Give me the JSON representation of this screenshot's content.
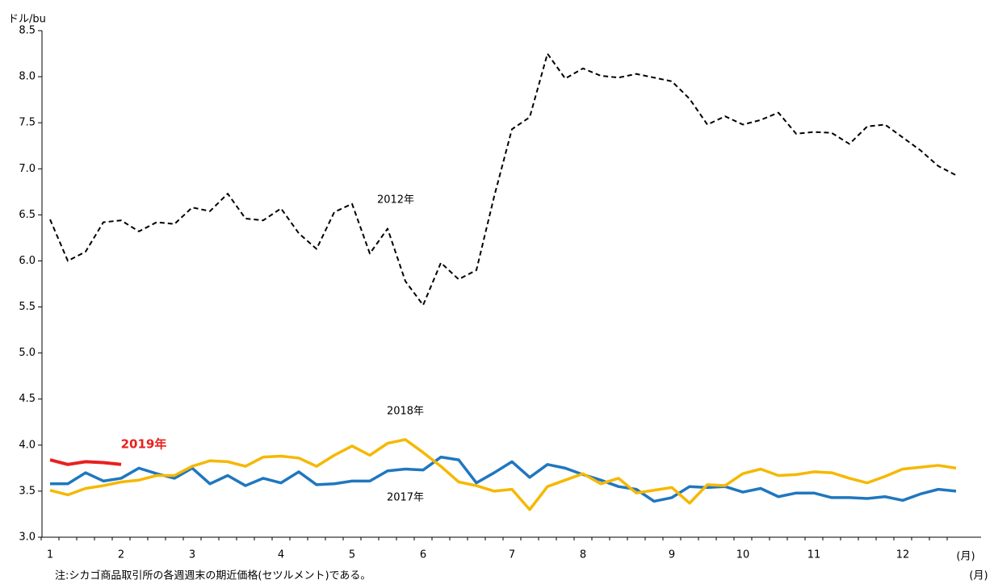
{
  "chart_data": {
    "type": "line",
    "y_label": "ドル/bu",
    "x_label": "(月)",
    "note": "注:シカゴ商品取引所の各週週末の期近価格(セツルメント)である。",
    "annotations": [
      "(月)"
    ],
    "categories": [
      "1",
      null,
      null,
      null,
      "2",
      null,
      null,
      null,
      "3",
      null,
      null,
      null,
      null,
      "4",
      null,
      null,
      null,
      "5",
      null,
      null,
      null,
      "6",
      null,
      null,
      null,
      null,
      "7",
      null,
      null,
      null,
      "8",
      null,
      null,
      null,
      null,
      "9",
      null,
      null,
      null,
      "10",
      null,
      null,
      null,
      "11",
      null,
      null,
      null,
      null,
      "12",
      null,
      null,
      null
    ],
    "ylim": [
      3,
      8.5
    ],
    "yticks": [
      {
        "value": 3,
        "label": "3.0"
      },
      3.5,
      {
        "value": 4,
        "label": "4.0"
      },
      4.5,
      {
        "value": 5,
        "label": "5.0"
      },
      5.5,
      {
        "value": 6,
        "label": "6.0"
      },
      6.5,
      {
        "value": 7,
        "label": "7.0"
      },
      7.5,
      {
        "value": 8,
        "label": "8.0"
      },
      8.5
    ],
    "series": [
      {
        "name": "2012年",
        "color": "#000000",
        "dash": true,
        "values": [
          6.45,
          6.0,
          6.1,
          6.42,
          6.44,
          6.32,
          6.42,
          6.4,
          6.58,
          6.54,
          6.73,
          6.46,
          6.44,
          6.57,
          6.3,
          6.13,
          6.53,
          6.62,
          6.08,
          6.35,
          5.78,
          5.52,
          5.98,
          5.8,
          5.9,
          6.7,
          7.43,
          7.56,
          8.25,
          7.98,
          8.09,
          8.01,
          7.99,
          8.03,
          7.99,
          7.95,
          7.76,
          7.48,
          7.57,
          7.48,
          7.53,
          7.61,
          7.38,
          7.4,
          7.39,
          7.27,
          7.46,
          7.48,
          7.34,
          7.2,
          7.03,
          6.93
        ]
      },
      {
        "name": "2017年",
        "color": "#1f77bf",
        "values": [
          3.58,
          3.58,
          3.7,
          3.61,
          3.64,
          3.75,
          3.69,
          3.64,
          3.75,
          3.58,
          3.67,
          3.56,
          3.64,
          3.59,
          3.71,
          3.57,
          3.58,
          3.61,
          3.61,
          3.72,
          3.74,
          3.73,
          3.87,
          3.84,
          3.59,
          3.7,
          3.82,
          3.65,
          3.79,
          3.75,
          3.68,
          3.62,
          3.55,
          3.52,
          3.39,
          3.43,
          3.55,
          3.54,
          3.55,
          3.49,
          3.53,
          3.44,
          3.48,
          3.48,
          3.43,
          3.43,
          3.42,
          3.44,
          3.4,
          3.47,
          3.52,
          3.5
        ]
      },
      {
        "name": "2018年",
        "color": "#f5b800",
        "values": [
          3.51,
          3.46,
          3.53,
          3.56,
          3.6,
          3.62,
          3.67,
          3.67,
          3.77,
          3.83,
          3.82,
          3.77,
          3.87,
          3.88,
          3.86,
          3.77,
          3.89,
          3.99,
          3.89,
          4.02,
          4.06,
          3.92,
          3.77,
          3.6,
          3.56,
          3.5,
          3.52,
          3.3,
          3.55,
          3.62,
          3.69,
          3.58,
          3.64,
          3.48,
          3.51,
          3.54,
          3.37,
          3.57,
          3.56,
          3.69,
          3.74,
          3.67,
          3.68,
          3.71,
          3.7,
          3.64,
          3.59,
          3.66,
          3.74,
          3.76,
          3.78,
          3.75
        ]
      },
      {
        "name": "2019年",
        "color": "#e8201e",
        "bold": true,
        "values": [
          3.84,
          3.79,
          3.82,
          3.81,
          3.79,
          null,
          null,
          null,
          null,
          null,
          null,
          null,
          null,
          null,
          null,
          null,
          null,
          null,
          null,
          null,
          null,
          null,
          null,
          null,
          null,
          null,
          null,
          null,
          null,
          null,
          null,
          null,
          null,
          null,
          null,
          null,
          null,
          null,
          null,
          null,
          null,
          null,
          null,
          null,
          null,
          null,
          null,
          null,
          null,
          null,
          null,
          null
        ]
      }
    ]
  }
}
